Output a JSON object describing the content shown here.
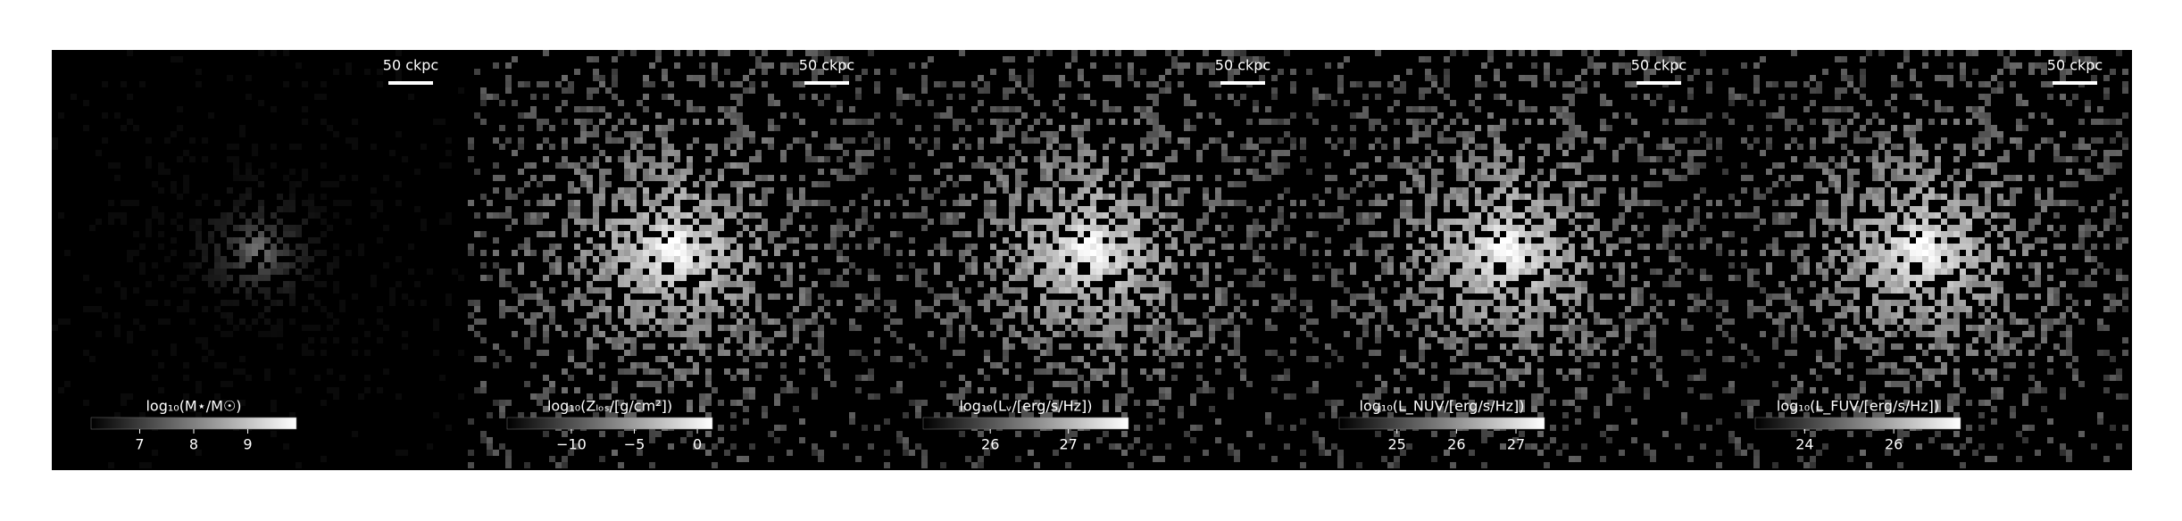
{
  "chart_data": [
    {
      "type": "image",
      "scale_bar": "50 ckpc",
      "colorbar_label": "log₁₀(M⋆/M☉)",
      "clim": [
        6.1,
        9.9
      ],
      "cticks": [
        7,
        8,
        9
      ]
    },
    {
      "type": "image",
      "scale_bar": "50 ckpc",
      "colorbar_label": "log₁₀(Zₗₒₛ/[g/cm²])",
      "clim": [
        -15.1,
        1.2
      ],
      "cticks": [
        {
          "value": -10,
          "label": "−10"
        },
        {
          "value": -5,
          "label": "−5"
        },
        0
      ]
    },
    {
      "type": "image",
      "scale_bar": "50 ckpc",
      "colorbar_label": "log₁₀(Lᵥ/[erg/s/Hz])",
      "clim": [
        25.14,
        27.77
      ],
      "cticks": [
        26,
        27
      ]
    },
    {
      "type": "image",
      "scale_bar": "50 ckpc",
      "colorbar_label": "log₁₀(L_NUV/[erg/s/Hz])",
      "clim": [
        24.03,
        27.48
      ],
      "cticks": [
        25,
        26,
        27
      ]
    },
    {
      "type": "image",
      "scale_bar": "50 ckpc",
      "colorbar_label": "log₁₀(L_FUV/[erg/s/Hz])",
      "clim": [
        22.89,
        27.5
      ],
      "cticks": [
        24,
        26
      ]
    }
  ]
}
